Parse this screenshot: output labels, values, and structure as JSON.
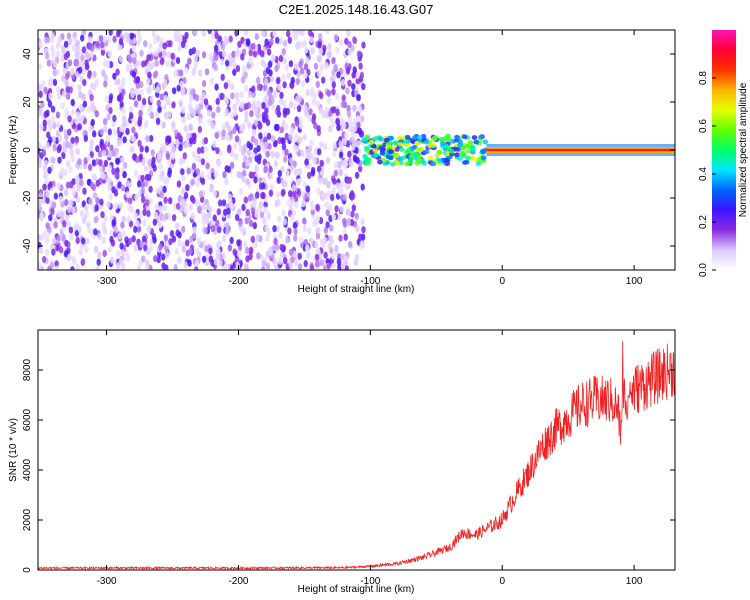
{
  "figure": {
    "title": "C2E1.2025.148.16.43.G07"
  },
  "chart_data": [
    {
      "type": "heatmap",
      "xlabel": "Height of straight line (km)",
      "ylabel": "Frequency (Hz)",
      "xlim": [
        -352,
        131
      ],
      "ylim": [
        -50,
        50
      ],
      "xticks": [
        -300,
        -200,
        -100,
        0,
        100
      ],
      "yticks": [
        -40,
        -20,
        0,
        20,
        40
      ],
      "tick_labels_x": [
        "-300",
        "-200",
        "-100",
        "0",
        "100"
      ],
      "tick_labels_y": [
        "-40",
        "-20",
        "0",
        "20",
        "40"
      ],
      "colorbar": {
        "label": "Normalized spectral amplitude",
        "range": [
          0,
          1
        ],
        "ticks": [
          0.0,
          0.2,
          0.4,
          0.6,
          0.8
        ],
        "tick_labels": [
          "0.0",
          "0.2",
          "0.4",
          "0.6",
          "0.8"
        ],
        "colormap": [
          "#ffffff",
          "#dcc8ff",
          "#8a2be2",
          "#3c14ff",
          "#0064ff",
          "#00e6ff",
          "#00ff64",
          "#64ff00",
          "#e6ff00",
          "#ffb400",
          "#ff3200",
          "#ff0032",
          "#ff14b4"
        ]
      },
      "regions": [
        {
          "name": "noise",
          "x": [
            -352,
            -105
          ],
          "freq": [
            -50,
            50
          ],
          "amplitude": [
            0.05,
            0.25
          ]
        },
        {
          "name": "fading",
          "x": [
            -105,
            -12
          ],
          "freq": [
            -8,
            9
          ],
          "amplitude": [
            0.2,
            0.7
          ]
        },
        {
          "name": "carrier",
          "x": [
            -12,
            131
          ],
          "freq": [
            -1,
            1
          ],
          "amplitude": [
            0.8,
            1.0
          ]
        }
      ],
      "carrier_frequency": 0
    },
    {
      "type": "line",
      "xlabel": "Height of straight line (km)",
      "ylabel": "SNR (10 * v/v)",
      "xlim": [
        -352,
        131
      ],
      "ylim": [
        0,
        9600
      ],
      "xticks": [
        -300,
        -200,
        -100,
        0,
        100
      ],
      "yticks": [
        0,
        2000,
        4000,
        6000,
        8000
      ],
      "tick_labels_x": [
        "-300",
        "-200",
        "-100",
        "0",
        "100"
      ],
      "tick_labels_y": [
        "0",
        "2000",
        "4000",
        "6000",
        "8000"
      ],
      "color": "#ee2222",
      "x": [
        -352,
        -300,
        -200,
        -120,
        -100,
        -80,
        -60,
        -40,
        -30,
        -20,
        -10,
        0,
        10,
        20,
        30,
        40,
        50,
        60,
        70,
        80,
        85,
        88,
        90,
        92,
        95,
        100,
        110,
        120,
        131
      ],
      "y": [
        80,
        80,
        80,
        90,
        150,
        250,
        500,
        900,
        1500,
        1400,
        1700,
        2000,
        3000,
        3900,
        4900,
        5600,
        6100,
        6600,
        6800,
        6800,
        6700,
        6300,
        5400,
        6900,
        7000,
        7200,
        7500,
        7800,
        8100
      ]
    }
  ]
}
